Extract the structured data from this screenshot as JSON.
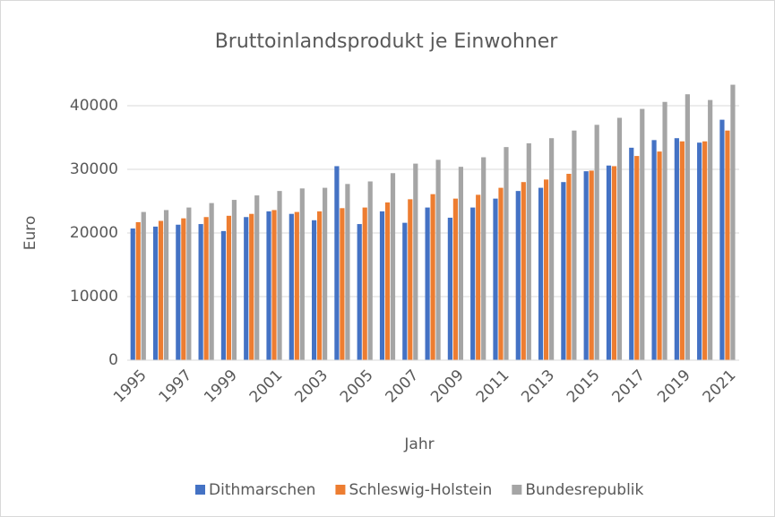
{
  "chart_data": {
    "type": "bar",
    "title": "Bruttoinlandsprodukt je Einwohner",
    "x_label": "Jahr",
    "y_label": "Euro",
    "categories": [
      "1995",
      null,
      "1997",
      null,
      "1999",
      null,
      "2001",
      null,
      "2003",
      null,
      "2005",
      null,
      "2007",
      null,
      "2009",
      null,
      "2011",
      null,
      "2013",
      null,
      "2015",
      null,
      "2017",
      null,
      "2019",
      null,
      "2021"
    ],
    "series": [
      {
        "name": "Dithmarschen",
        "color": "#4472c4",
        "values": [
          20700,
          21000,
          21300,
          21400,
          20300,
          22500,
          23400,
          23000,
          22000,
          30500,
          21400,
          23400,
          21600,
          24000,
          22400,
          24000,
          25400,
          26600,
          27100,
          28000,
          29700,
          30600,
          33400,
          34600,
          34900,
          34200,
          37800
        ]
      },
      {
        "name": "Schleswig-Holstein",
        "color": "#ed7d31",
        "values": [
          21700,
          21900,
          22300,
          22500,
          22700,
          23000,
          23600,
          23300,
          23400,
          23900,
          24000,
          24800,
          25300,
          26100,
          25400,
          26000,
          27100,
          28000,
          28400,
          29300,
          29800,
          30500,
          32100,
          32800,
          34400,
          34400,
          36100
        ]
      },
      {
        "name": "Bundesrepublik",
        "color": "#a5a5a5",
        "values": [
          23300,
          23600,
          24000,
          24700,
          25200,
          25900,
          26600,
          27000,
          27100,
          27700,
          28100,
          29400,
          30900,
          31500,
          30400,
          31900,
          33500,
          34100,
          34900,
          36100,
          37000,
          38100,
          39500,
          40600,
          41800,
          40900,
          43300
        ]
      }
    ],
    "ylim": [
      0,
      45000
    ],
    "yticks": [
      0,
      10000,
      20000,
      30000,
      40000
    ],
    "grid": true,
    "legend": "bottom"
  }
}
